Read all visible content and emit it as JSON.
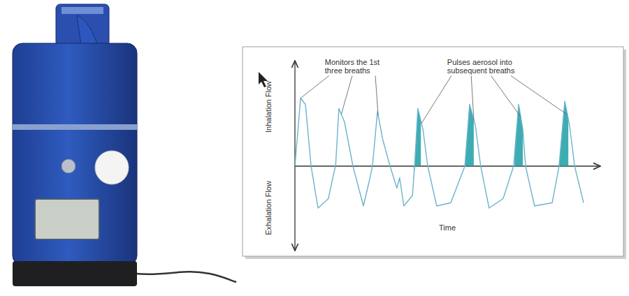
{
  "chart_data": {
    "type": "line",
    "xlabel": "Time",
    "ylabels": {
      "top": "Inhalation Flow",
      "bottom": "Exhalation Flow"
    },
    "xlim": [
      0,
      100
    ],
    "ylim": [
      -8,
      10
    ],
    "xticks": [],
    "yticks": [],
    "tick_labels": false,
    "grid": false,
    "color": "#6bb3cc",
    "x": [
      0,
      1.9,
      3.5,
      5.4,
      7.7,
      11.2,
      13.1,
      13.6,
      14.7,
      16.6,
      19.4,
      22.9,
      24.8,
      25.9,
      27.6,
      29.4,
      31.8,
      34.1,
      35.0,
      36.4,
      39.3,
      40.0,
      41.1,
      42.8,
      44.4,
      47.4,
      52.1,
      56.8,
      58.4,
      60.3,
      62.1,
      64.9,
      69.6,
      73.1,
      74.8,
      76.2,
      77.1,
      80.1,
      86.0,
      88.3,
      90.2,
      91.8,
      93.5,
      95.3,
      96.5
    ],
    "values": [
      0,
      6.5,
      5.9,
      0,
      -4,
      -3.1,
      -0.5,
      0,
      5.5,
      4.2,
      0,
      -3.8,
      -1.5,
      0,
      5.2,
      2.5,
      0,
      -2.1,
      -1.1,
      -3.8,
      -2.8,
      0,
      5.5,
      3.5,
      0,
      -3.8,
      -3.5,
      0,
      5.9,
      3.9,
      0,
      -4,
      -3.1,
      0,
      5.9,
      3.5,
      0,
      -3.8,
      -3.5,
      0,
      6.2,
      3.9,
      0,
      -2.1,
      -3.5
    ],
    "shaded": {
      "color": "#1b9fa6",
      "ranges": [
        [
          39.7,
          42.1
        ],
        [
          56.8,
          59.8
        ],
        [
          73.4,
          76.2
        ],
        [
          88.3,
          91.4
        ]
      ]
    },
    "annotations": [
      {
        "lines": [
          "Monitors the 1st",
          "three breaths"
        ],
        "x": 10.0,
        "y": 9.7,
        "targets": [
          1.9,
          15.5,
          27.8
        ]
      },
      {
        "lines": [
          "Pulses aerosol into",
          "subsequent breaths"
        ],
        "x": 50.9,
        "y": 9.7,
        "targets": [
          42.3,
          59.8,
          75.5,
          91.1
        ]
      }
    ]
  }
}
